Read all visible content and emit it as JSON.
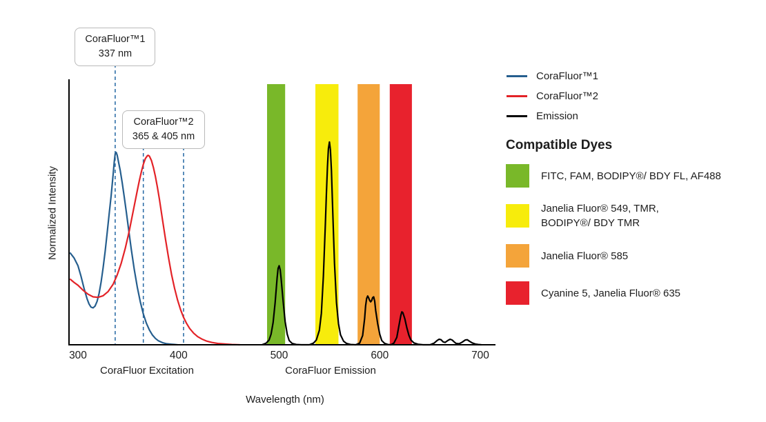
{
  "chart_data": {
    "type": "line",
    "xlabel": "Wavelength (nm)",
    "ylabel": "Normalized Intensity",
    "x_ticks": [
      300,
      400,
      500,
      600,
      700
    ],
    "xlim": [
      291,
      715
    ],
    "ylim": [
      0,
      1
    ],
    "grid": false,
    "legend_position": "right",
    "axis_section_labels": [
      {
        "text": "CoraFluor Excitation"
      },
      {
        "text": "CoraFluor Emission"
      }
    ],
    "annotations": [
      {
        "title": "CoraFluor™1",
        "value": "337 nm"
      },
      {
        "title": "CoraFluor™2",
        "value": "365 & 405 nm"
      }
    ],
    "dashed_lines": [
      {
        "nm": 337
      },
      {
        "nm": 365
      },
      {
        "nm": 405
      }
    ],
    "dashed_color": "#2f6fa8",
    "bands": [
      {
        "name": "green-filter",
        "from_nm": 488,
        "to_nm": 506,
        "color": "#79b829"
      },
      {
        "name": "yellow-filter",
        "from_nm": 536,
        "to_nm": 559,
        "color": "#f7ec0c"
      },
      {
        "name": "orange-filter",
        "from_nm": 578,
        "to_nm": 600,
        "color": "#f4a43a"
      },
      {
        "name": "red-filter",
        "from_nm": 610,
        "to_nm": 632,
        "color": "#e8222d"
      }
    ],
    "series": [
      {
        "name": "CoraFluor1-excitation",
        "color": "#255e8e",
        "points": [
          [
            292,
            0.35
          ],
          [
            296,
            0.33
          ],
          [
            300,
            0.3
          ],
          [
            303,
            0.26
          ],
          [
            306,
            0.215
          ],
          [
            309,
            0.175
          ],
          [
            311,
            0.155
          ],
          [
            313,
            0.143
          ],
          [
            315,
            0.14
          ],
          [
            317,
            0.147
          ],
          [
            319,
            0.165
          ],
          [
            321,
            0.195
          ],
          [
            323,
            0.238
          ],
          [
            325,
            0.292
          ],
          [
            327,
            0.355
          ],
          [
            329,
            0.425
          ],
          [
            331,
            0.497
          ],
          [
            333,
            0.567
          ],
          [
            335,
            0.648
          ],
          [
            336,
            0.693
          ],
          [
            337,
            0.725
          ],
          [
            338,
            0.73
          ],
          [
            339,
            0.72
          ],
          [
            340,
            0.7
          ],
          [
            342,
            0.662
          ],
          [
            344,
            0.615
          ],
          [
            346,
            0.562
          ],
          [
            348,
            0.505
          ],
          [
            350,
            0.447
          ],
          [
            353,
            0.363
          ],
          [
            356,
            0.285
          ],
          [
            359,
            0.218
          ],
          [
            362,
            0.162
          ],
          [
            365,
            0.117
          ],
          [
            368,
            0.082
          ],
          [
            371,
            0.056
          ],
          [
            374,
            0.037
          ],
          [
            377,
            0.024
          ],
          [
            380,
            0.015
          ],
          [
            384,
            0.008
          ],
          [
            388,
            0.004
          ],
          [
            393,
            0.002
          ],
          [
            399,
            0
          ]
        ]
      },
      {
        "name": "CoraFluor2-excitation",
        "color": "#e32227",
        "points": [
          [
            292,
            0.25
          ],
          [
            296,
            0.237
          ],
          [
            300,
            0.226
          ],
          [
            305,
            0.207
          ],
          [
            310,
            0.192
          ],
          [
            315,
            0.182
          ],
          [
            320,
            0.18
          ],
          [
            325,
            0.186
          ],
          [
            330,
            0.202
          ],
          [
            335,
            0.23
          ],
          [
            339,
            0.265
          ],
          [
            343,
            0.31
          ],
          [
            347,
            0.366
          ],
          [
            351,
            0.432
          ],
          [
            354,
            0.49
          ],
          [
            357,
            0.548
          ],
          [
            359,
            0.586
          ],
          [
            361,
            0.623
          ],
          [
            363,
            0.656
          ],
          [
            365,
            0.685
          ],
          [
            367,
            0.707
          ],
          [
            369,
            0.718
          ],
          [
            370,
            0.719
          ],
          [
            371,
            0.716
          ],
          [
            373,
            0.7
          ],
          [
            375,
            0.673
          ],
          [
            377,
            0.639
          ],
          [
            379,
            0.598
          ],
          [
            381,
            0.551
          ],
          [
            384,
            0.476
          ],
          [
            387,
            0.401
          ],
          [
            390,
            0.331
          ],
          [
            393,
            0.268
          ],
          [
            396,
            0.215
          ],
          [
            399,
            0.17
          ],
          [
            402,
            0.133
          ],
          [
            405,
            0.104
          ],
          [
            408,
            0.081
          ],
          [
            411,
            0.062
          ],
          [
            415,
            0.044
          ],
          [
            419,
            0.031
          ],
          [
            423,
            0.022
          ],
          [
            428,
            0.014
          ],
          [
            433,
            0.009
          ],
          [
            439,
            0.005
          ],
          [
            446,
            0.003
          ],
          [
            453,
            0.001
          ],
          [
            461,
            0
          ]
        ]
      },
      {
        "name": "Emission",
        "color": "#000000",
        "points": [
          [
            483,
            0
          ],
          [
            487,
            0.006
          ],
          [
            490,
            0.018
          ],
          [
            492,
            0.04
          ],
          [
            494,
            0.085
          ],
          [
            496,
            0.16
          ],
          [
            498,
            0.255
          ],
          [
            499,
            0.29
          ],
          [
            500,
            0.3
          ],
          [
            501,
            0.285
          ],
          [
            502,
            0.25
          ],
          [
            504,
            0.165
          ],
          [
            506,
            0.088
          ],
          [
            508,
            0.04
          ],
          [
            510,
            0.016
          ],
          [
            513,
            0.005
          ],
          [
            517,
            0.001
          ],
          [
            522,
            0
          ],
          [
            530,
            0
          ],
          [
            534,
            0.006
          ],
          [
            537,
            0.018
          ],
          [
            540,
            0.055
          ],
          [
            542,
            0.12
          ],
          [
            544,
            0.26
          ],
          [
            546,
            0.46
          ],
          [
            547,
            0.575
          ],
          [
            548,
            0.675
          ],
          [
            549,
            0.745
          ],
          [
            550,
            0.77
          ],
          [
            551,
            0.74
          ],
          [
            552,
            0.66
          ],
          [
            553,
            0.545
          ],
          [
            554,
            0.425
          ],
          [
            555,
            0.31
          ],
          [
            557,
            0.16
          ],
          [
            559,
            0.08
          ],
          [
            561,
            0.038
          ],
          [
            564,
            0.014
          ],
          [
            567,
            0.005
          ],
          [
            571,
            0.001
          ],
          [
            576,
            0
          ],
          [
            580,
            0.006
          ],
          [
            583,
            0.035
          ],
          [
            585,
            0.1
          ],
          [
            586,
            0.148
          ],
          [
            587,
            0.176
          ],
          [
            588,
            0.185
          ],
          [
            589,
            0.178
          ],
          [
            590,
            0.168
          ],
          [
            591,
            0.163
          ],
          [
            592,
            0.168
          ],
          [
            593,
            0.179
          ],
          [
            594,
            0.182
          ],
          [
            595,
            0.165
          ],
          [
            596,
            0.13
          ],
          [
            598,
            0.08
          ],
          [
            600,
            0.04
          ],
          [
            602,
            0.016
          ],
          [
            605,
            0.005
          ],
          [
            608,
            0.001
          ],
          [
            611,
            0
          ],
          [
            614,
            0.006
          ],
          [
            617,
            0.028
          ],
          [
            619,
            0.07
          ],
          [
            621,
            0.112
          ],
          [
            622,
            0.125
          ],
          [
            623,
            0.122
          ],
          [
            625,
            0.098
          ],
          [
            627,
            0.064
          ],
          [
            629,
            0.036
          ],
          [
            631,
            0.018
          ],
          [
            634,
            0.007
          ],
          [
            638,
            0.002
          ],
          [
            643,
            0
          ],
          [
            650,
            0
          ],
          [
            654,
            0.006
          ],
          [
            657,
            0.016
          ],
          [
            659,
            0.021
          ],
          [
            661,
            0.019
          ],
          [
            663,
            0.011
          ],
          [
            665,
            0.009
          ],
          [
            668,
            0.017
          ],
          [
            670,
            0.021
          ],
          [
            672,
            0.018
          ],
          [
            674,
            0.011
          ],
          [
            676,
            0.005
          ],
          [
            679,
            0.004
          ],
          [
            682,
            0.01
          ],
          [
            685,
            0.018
          ],
          [
            687,
            0.019
          ],
          [
            689,
            0.014
          ],
          [
            692,
            0.007
          ],
          [
            695,
            0.003
          ],
          [
            698,
            0.001
          ],
          [
            701,
            0
          ]
        ]
      }
    ]
  },
  "legend": {
    "items": [
      {
        "label": "CoraFluor™1",
        "color": "#255e8e"
      },
      {
        "label": "CoraFluor™2",
        "color": "#e32227"
      },
      {
        "label": "Emission",
        "color": "#000000"
      }
    ]
  },
  "compatible_dyes": {
    "heading": "Compatible Dyes",
    "items": [
      {
        "color": "#79b829",
        "label": "FITC, FAM, BODIPY®/ BDY FL, AF488"
      },
      {
        "color": "#f7ec0c",
        "label": "Janelia Fluor® 549, TMR,\nBODIPY®/ BDY TMR"
      },
      {
        "color": "#f4a43a",
        "label": "Janelia Fluor® 585"
      },
      {
        "color": "#e8222d",
        "label": "Cyanine 5, Janelia Fluor® 635"
      }
    ]
  }
}
